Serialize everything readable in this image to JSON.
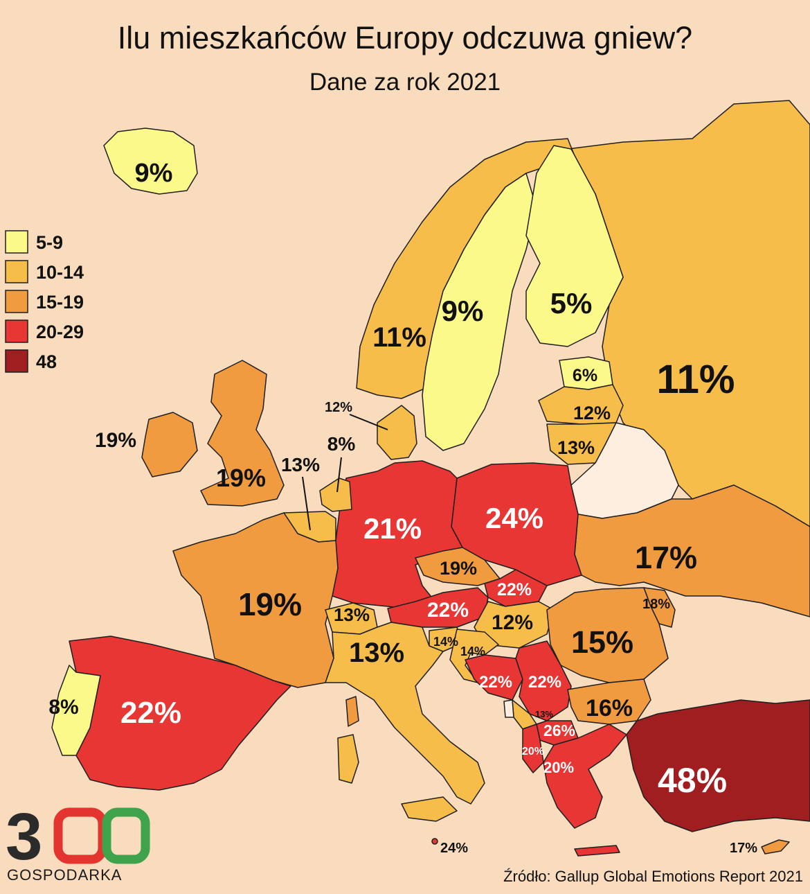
{
  "title": "Ilu mieszkańców Europy odczuwa gniew?",
  "subtitle": "Dane za rok 2021",
  "source": "Źródło: Gallup Global Emotions Report 2021",
  "legend": [
    {
      "label": "5-9",
      "color": "#fbf98a"
    },
    {
      "label": "10-14",
      "color": "#f7bd4b"
    },
    {
      "label": "15-19",
      "color": "#f19b41"
    },
    {
      "label": "20-29",
      "color": "#e83634"
    },
    {
      "label": "48",
      "color": "#a11e20"
    }
  ],
  "colors": {
    "background": "#f9dcbd",
    "no_data": "#fdeee0",
    "outline": "#1e1e1e"
  },
  "logo": {
    "digits": "300",
    "name": "GOSPODARKA",
    "colors": [
      "#2b2b2b",
      "#e3342f",
      "#3ea34a"
    ]
  },
  "values": {
    "iceland": "9%",
    "ireland": "19%",
    "uk": "19%",
    "norway": "11%",
    "sweden": "9%",
    "finland": "5%",
    "estonia": "6%",
    "latvia": "12%",
    "lithuania": "13%",
    "russia": "11%",
    "denmark": "12%",
    "netherlands": "8%",
    "belgium": "13%",
    "germany": "21%",
    "poland": "24%",
    "ukraine": "17%",
    "czechia": "19%",
    "slovakia": "22%",
    "austria": "22%",
    "switzerland": "13%",
    "france": "19%",
    "hungary": "12%",
    "moldova": "18%",
    "romania": "15%",
    "slovenia": "14%",
    "croatia": "14%",
    "italy": "13%",
    "bosnia": "22%",
    "serbia": "22%",
    "bulgaria": "16%",
    "montenegro": "13%",
    "north_macedonia": "26%",
    "albania": "20%",
    "greece": "20%",
    "turkey": "48%",
    "portugal": "8%",
    "spain": "22%",
    "malta": "24%",
    "cyprus": "17%"
  }
}
